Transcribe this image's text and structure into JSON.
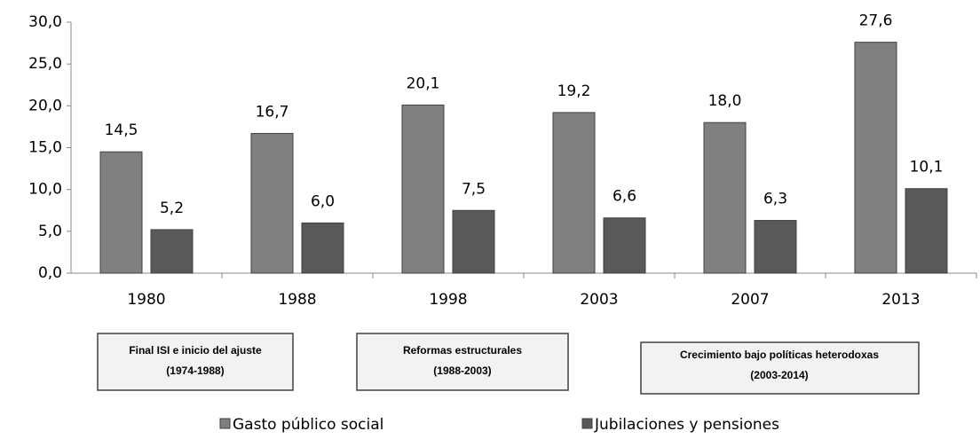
{
  "chart_data": {
    "type": "bar",
    "categories": [
      "1980",
      "1988",
      "1998",
      "2003",
      "2007",
      "2013"
    ],
    "series": [
      {
        "name": "Gasto público social",
        "color": "#808080",
        "values": [
          14.5,
          16.7,
          20.1,
          19.2,
          18.0,
          27.6
        ],
        "value_labels": [
          "14,5",
          "16,7",
          "20,1",
          "19,2",
          "18,0",
          "27,6"
        ]
      },
      {
        "name": "Jubilaciones y pensiones",
        "color": "#595959",
        "values": [
          5.2,
          6.0,
          7.5,
          6.6,
          6.3,
          10.1
        ],
        "value_labels": [
          "5,2",
          "6,0",
          "7,5",
          "6,6",
          "6,3",
          "10,1"
        ]
      }
    ],
    "ylim": [
      0,
      30
    ],
    "yticks": [
      {
        "value": 0,
        "label": "0,0"
      },
      {
        "value": 5,
        "label": "5,0"
      },
      {
        "value": 10,
        "label": "10,0"
      },
      {
        "value": 15,
        "label": "15,0"
      },
      {
        "value": 20,
        "label": "20,0"
      },
      {
        "value": 25,
        "label": "25,0"
      },
      {
        "value": 30,
        "label": "30,0"
      }
    ],
    "legend": "bottom",
    "annotations": [
      {
        "lines": [
          "Final ISI e inicio del ajuste",
          "(1974-1988)"
        ]
      },
      {
        "lines": [
          "Reformas estructurales",
          "(1988-2003)"
        ]
      },
      {
        "lines": [
          "Crecimiento bajo políticas heterodoxas",
          "(2003-2014)"
        ]
      }
    ]
  }
}
